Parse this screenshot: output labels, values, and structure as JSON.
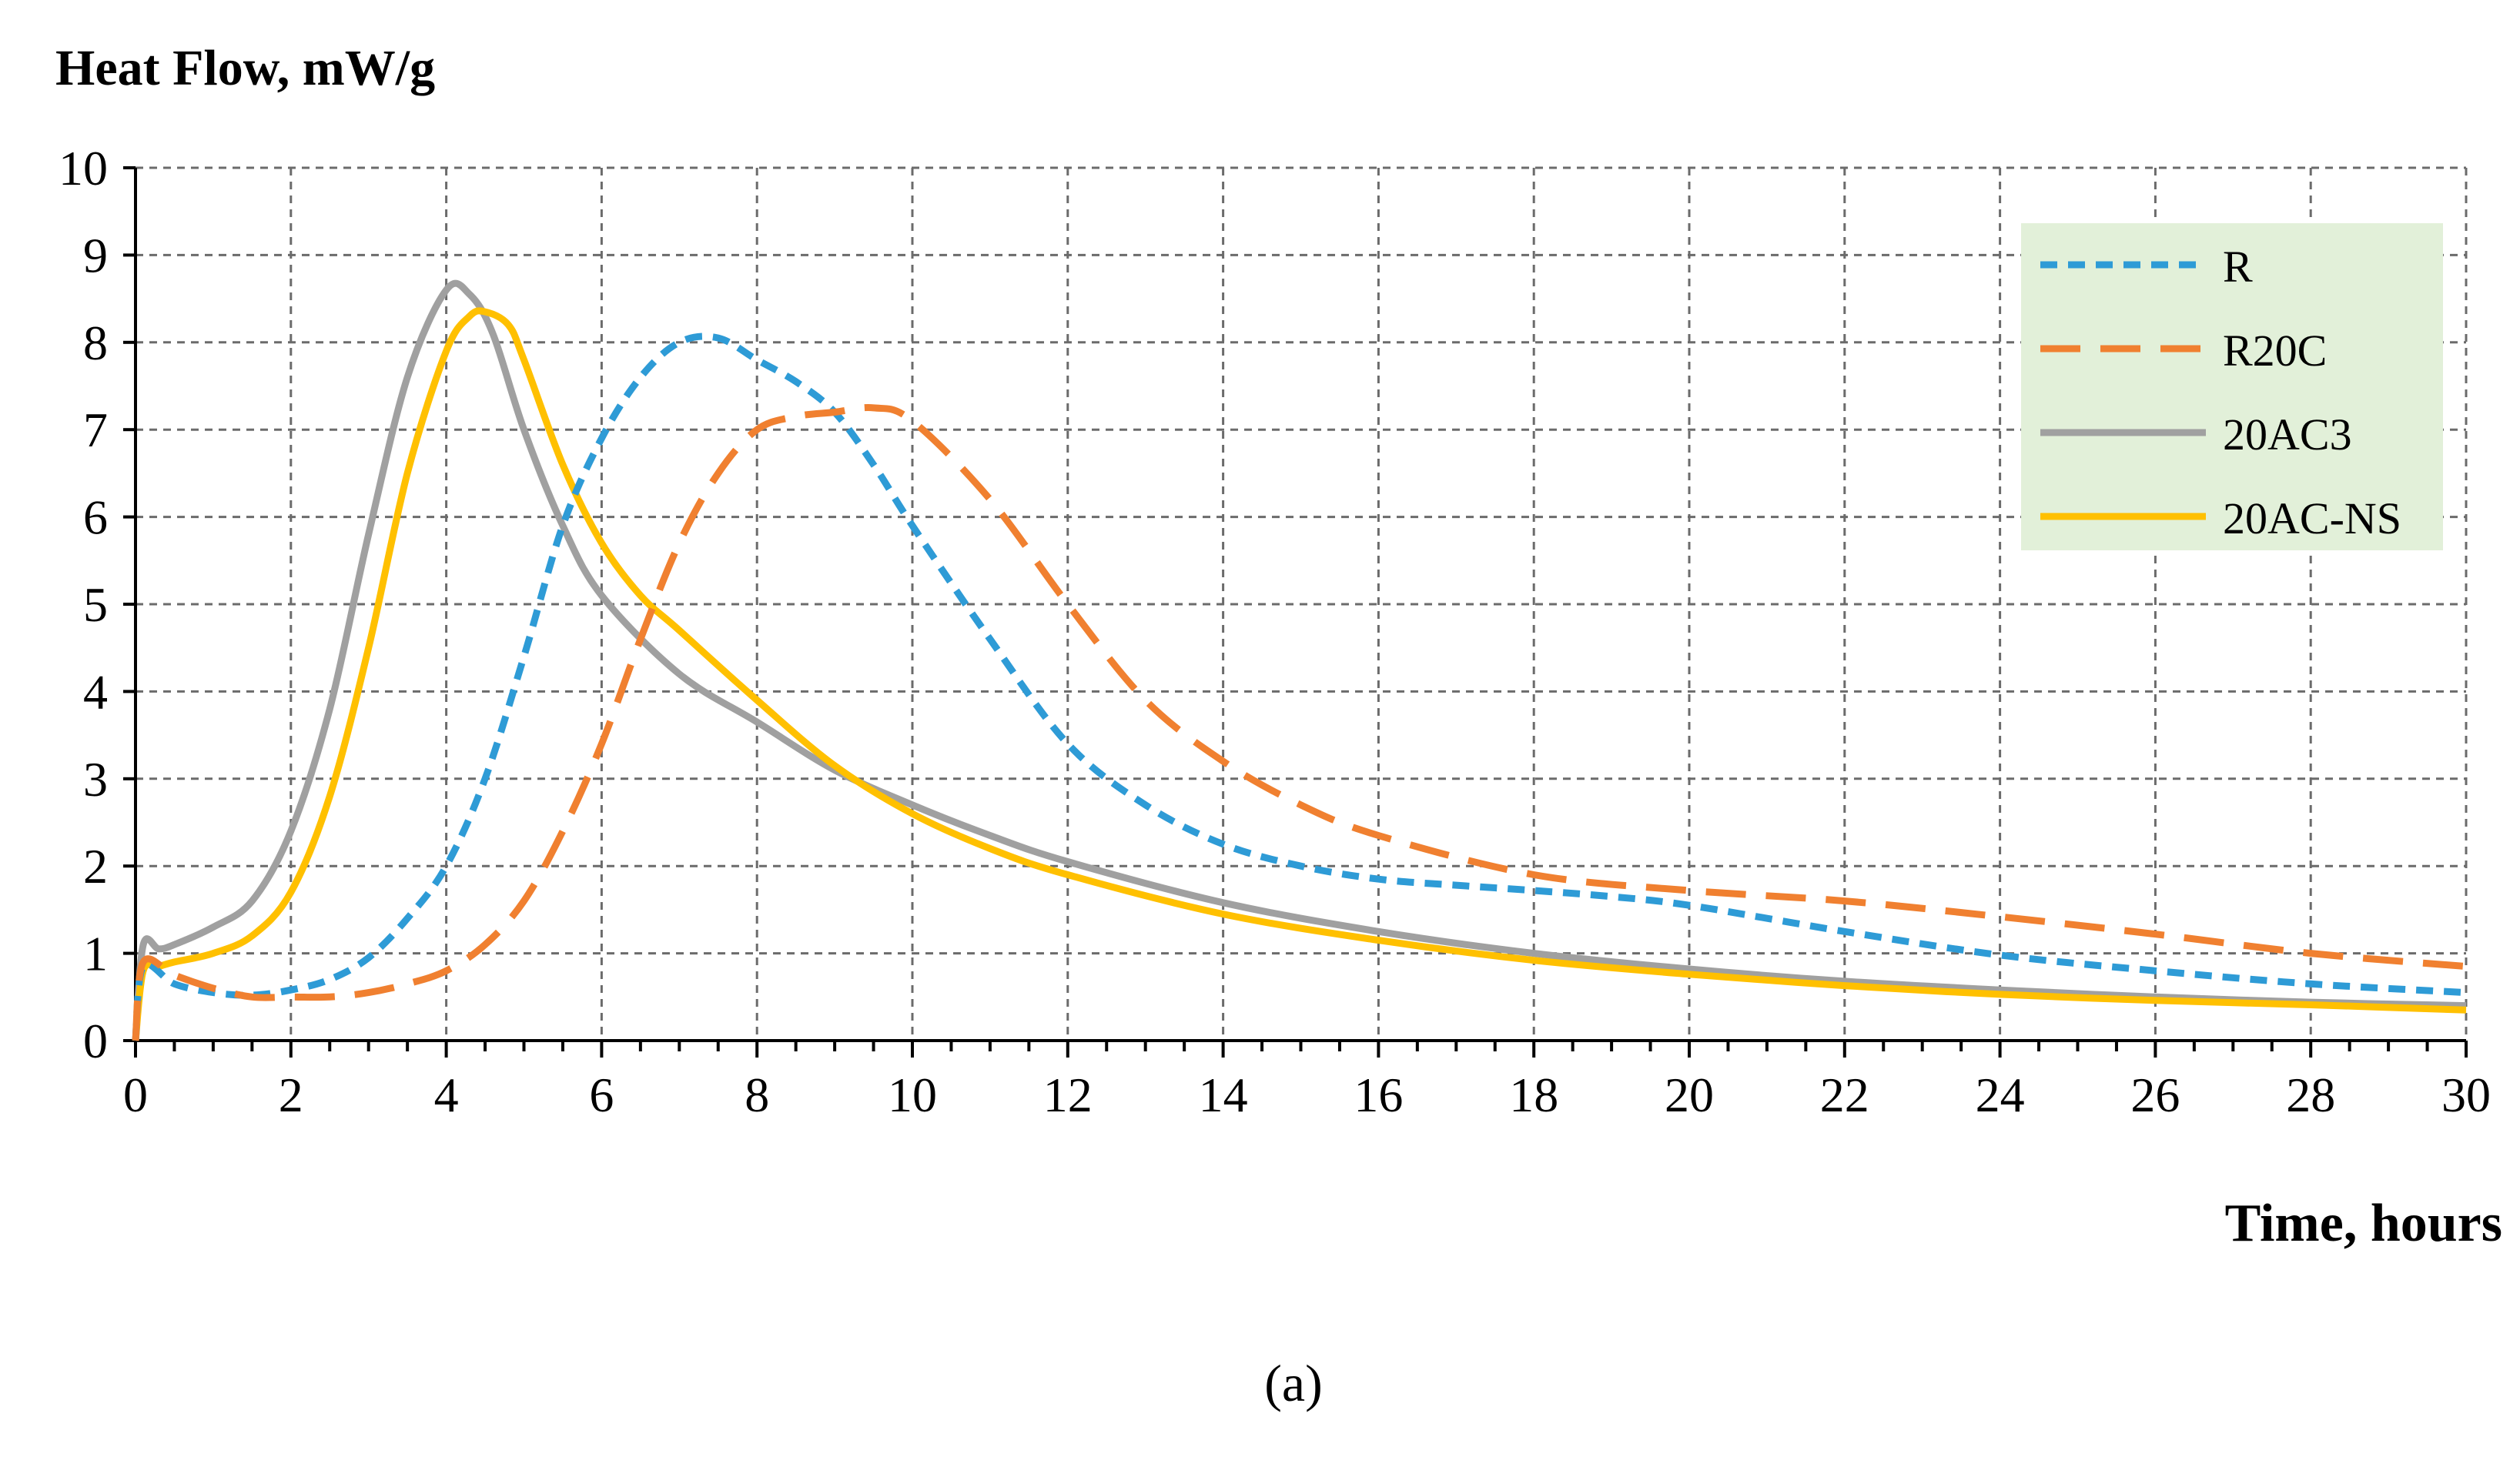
{
  "chart_data": {
    "type": "line",
    "title": "",
    "ylabel": "Heat Flow, mW/g",
    "xlabel": "Time, hours",
    "caption": "(a)",
    "xlim": [
      0,
      30
    ],
    "ylim": [
      0,
      10
    ],
    "x_major_ticks": [
      0,
      2,
      4,
      6,
      8,
      10,
      12,
      14,
      16,
      18,
      20,
      22,
      24,
      26,
      28,
      30
    ],
    "x_tick_labels": [
      "0",
      "2",
      "4",
      "6",
      "8",
      "10",
      "12",
      "14",
      "16",
      "18",
      "20",
      "22",
      "24",
      "26",
      "28",
      "30"
    ],
    "y_major_ticks": [
      0,
      1,
      2,
      3,
      4,
      5,
      6,
      7,
      8,
      9,
      10
    ],
    "y_tick_labels": [
      "0",
      "1",
      "2",
      "3",
      "4",
      "5",
      "6",
      "7",
      "8",
      "9",
      "10"
    ],
    "grid": true,
    "legend_position": "top-right",
    "series": [
      {
        "name": "R",
        "color": "#2E9BD6",
        "dash": "short",
        "x": [
          0,
          0.1,
          0.5,
          1,
          1.5,
          2,
          2.5,
          3,
          3.5,
          4,
          4.5,
          5,
          5.5,
          6,
          6.5,
          7,
          7.5,
          8,
          8.5,
          9,
          9.5,
          10,
          11,
          12,
          13,
          14,
          15,
          16,
          17,
          18,
          19,
          20,
          22,
          24,
          26,
          28,
          30
        ],
        "values": [
          0,
          0.85,
          0.65,
          0.55,
          0.52,
          0.58,
          0.7,
          0.95,
          1.4,
          2.0,
          3.0,
          4.4,
          5.9,
          6.9,
          7.6,
          8.0,
          8.05,
          7.8,
          7.55,
          7.2,
          6.6,
          5.9,
          4.6,
          3.4,
          2.7,
          2.25,
          2.0,
          1.85,
          1.78,
          1.72,
          1.65,
          1.55,
          1.25,
          0.98,
          0.8,
          0.65,
          0.55
        ]
      },
      {
        "name": "R20C",
        "color": "#F08030",
        "dash": "long",
        "x": [
          0,
          0.1,
          0.5,
          1,
          1.5,
          2,
          2.5,
          3,
          3.5,
          4,
          4.5,
          5,
          5.5,
          6,
          6.5,
          7,
          7.5,
          8,
          8.5,
          9,
          9.5,
          10,
          11,
          12,
          13,
          14,
          15,
          16,
          18,
          20,
          22,
          24,
          26,
          28,
          30
        ],
        "values": [
          0,
          0.9,
          0.75,
          0.6,
          0.5,
          0.5,
          0.5,
          0.55,
          0.65,
          0.8,
          1.1,
          1.6,
          2.4,
          3.4,
          4.6,
          5.7,
          6.5,
          7.0,
          7.15,
          7.2,
          7.25,
          7.1,
          6.2,
          5.0,
          3.9,
          3.2,
          2.7,
          2.35,
          1.9,
          1.72,
          1.6,
          1.42,
          1.22,
          1.0,
          0.85
        ]
      },
      {
        "name": "20AC3",
        "color": "#A0A0A0",
        "dash": "solid",
        "x": [
          0,
          0.1,
          0.3,
          0.5,
          1,
          1.5,
          2,
          2.5,
          3,
          3.5,
          4,
          4.3,
          4.6,
          5,
          5.5,
          6,
          7,
          8,
          9,
          10,
          11,
          12,
          14,
          16,
          18,
          20,
          22,
          24,
          26,
          28,
          30
        ],
        "values": [
          0,
          1.1,
          1.05,
          1.1,
          1.3,
          1.6,
          2.4,
          3.8,
          5.8,
          7.6,
          8.6,
          8.55,
          8.1,
          7.0,
          5.9,
          5.1,
          4.2,
          3.65,
          3.1,
          2.7,
          2.35,
          2.05,
          1.58,
          1.25,
          1.0,
          0.82,
          0.68,
          0.58,
          0.5,
          0.44,
          0.4
        ]
      },
      {
        "name": "20AC-NS",
        "color": "#FFC000",
        "dash": "solid",
        "x": [
          0,
          0.1,
          0.3,
          0.5,
          1,
          1.5,
          2,
          2.5,
          3,
          3.5,
          4,
          4.3,
          4.5,
          4.8,
          5,
          5.5,
          6,
          6.5,
          7,
          8,
          9,
          10,
          11,
          12,
          14,
          16,
          18,
          20,
          22,
          24,
          26,
          28,
          30
        ],
        "values": [
          0,
          0.8,
          0.85,
          0.9,
          1.0,
          1.2,
          1.7,
          2.8,
          4.5,
          6.5,
          7.9,
          8.3,
          8.35,
          8.2,
          7.8,
          6.6,
          5.7,
          5.1,
          4.7,
          3.9,
          3.15,
          2.6,
          2.2,
          1.9,
          1.45,
          1.15,
          0.92,
          0.76,
          0.63,
          0.53,
          0.46,
          0.41,
          0.35
        ]
      }
    ]
  }
}
